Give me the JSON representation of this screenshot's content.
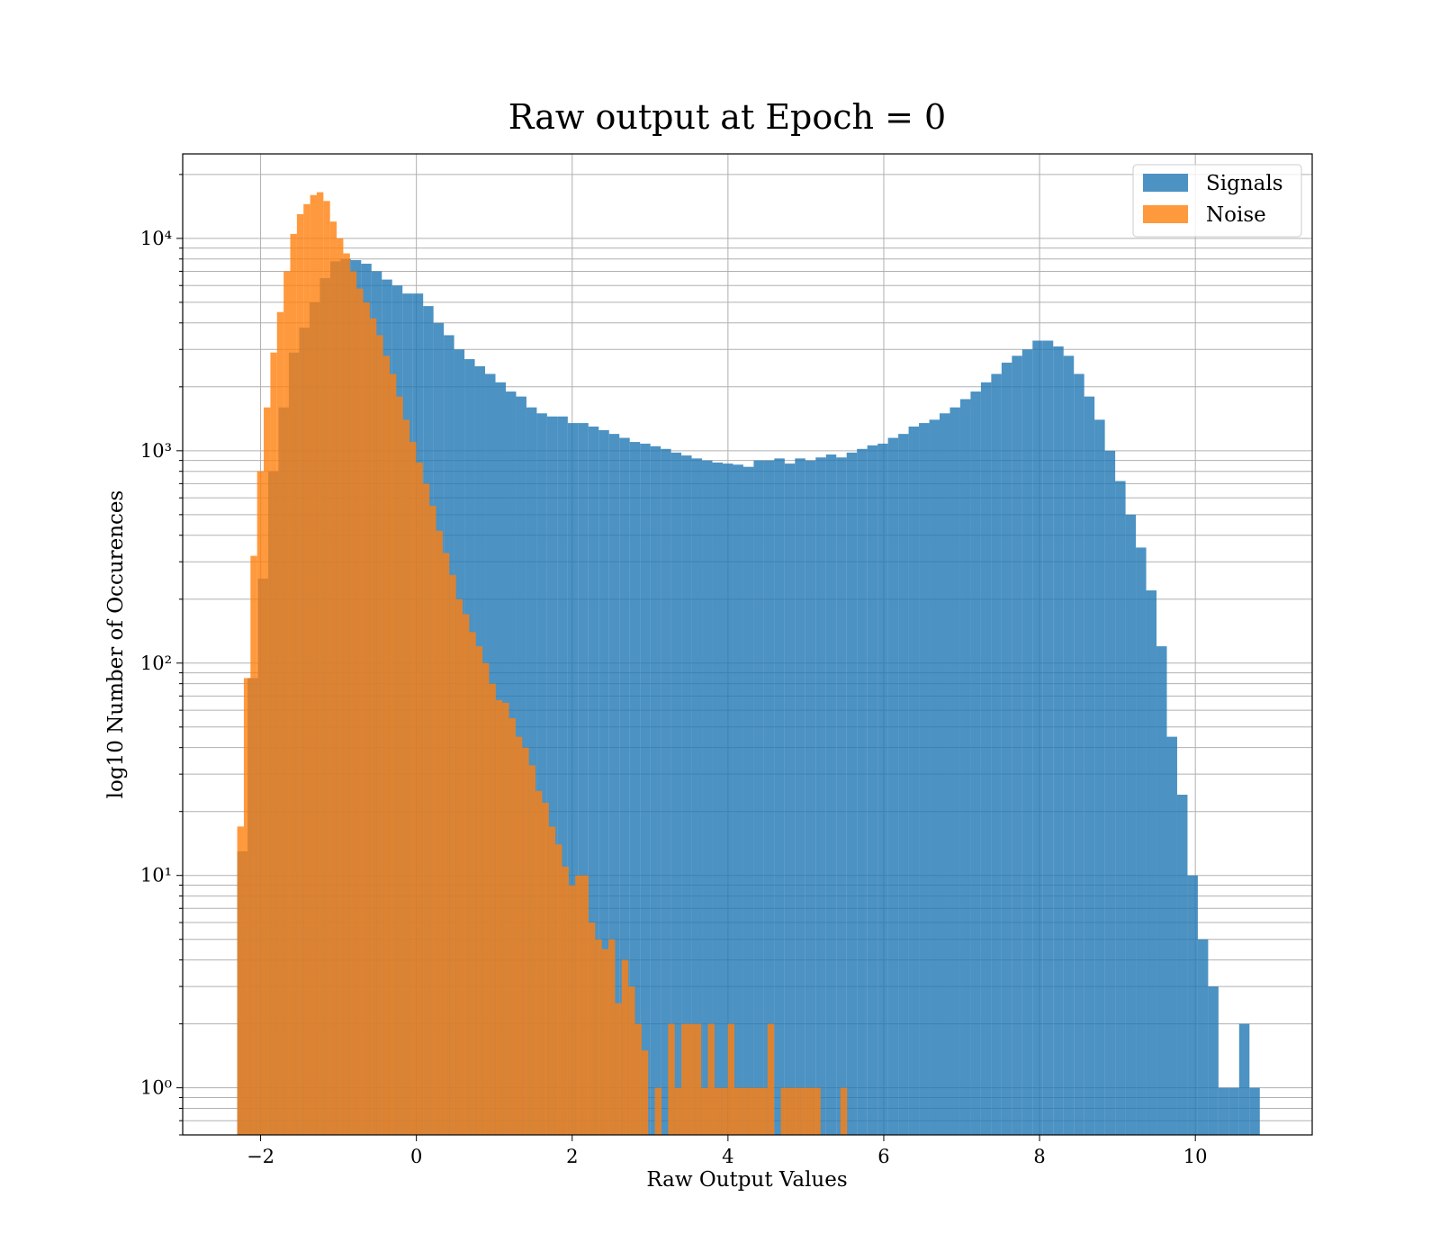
{
  "chart_data": {
    "type": "bar",
    "title": "Raw output at Epoch = 0",
    "xlabel": "Raw Output Values",
    "ylabel": "log10 Number of Occurences",
    "yscale": "log",
    "xlim": [
      -3,
      11.5
    ],
    "ylim": [
      0.6,
      25000
    ],
    "grid": true,
    "x_ticks": [
      -2,
      0,
      2,
      4,
      6,
      8,
      10
    ],
    "x_tick_labels": [
      "−2",
      "0",
      "2",
      "4",
      "6",
      "8",
      "10"
    ],
    "y_ticks": [
      1,
      10,
      100,
      1000,
      10000
    ],
    "y_tick_labels": [
      "10⁰",
      "10¹",
      "10²",
      "10³",
      "10⁴"
    ],
    "legend": {
      "placement": "top-right",
      "entries": [
        "Signals",
        "Noise"
      ]
    },
    "series": [
      {
        "name": "Signals",
        "color": "#1f77b4",
        "opacity": 0.8,
        "bins": {
          "start": -2.3,
          "width": 0.1326
        },
        "values": [
          13,
          85,
          250,
          800,
          1600,
          2900,
          3800,
          5000,
          6500,
          7800,
          8000,
          7900,
          7600,
          7000,
          6400,
          6000,
          5500,
          5500,
          4800,
          4000,
          3500,
          3000,
          2700,
          2500,
          2300,
          2100,
          1900,
          1800,
          1600,
          1500,
          1450,
          1450,
          1350,
          1350,
          1300,
          1250,
          1200,
          1150,
          1100,
          1080,
          1050,
          1020,
          980,
          950,
          920,
          900,
          880,
          870,
          860,
          840,
          900,
          900,
          920,
          870,
          920,
          900,
          930,
          960,
          930,
          980,
          1020,
          1060,
          1080,
          1150,
          1200,
          1300,
          1350,
          1400,
          1500,
          1600,
          1750,
          1900,
          2100,
          2300,
          2600,
          2800,
          3000,
          3300,
          3300,
          3100,
          2800,
          2300,
          1800,
          1400,
          1000,
          720,
          500,
          350,
          220,
          120,
          45,
          24,
          10,
          5,
          3,
          1,
          1,
          2,
          1
        ]
      },
      {
        "name": "Noise",
        "color": "#ff7f0e",
        "opacity": 0.8,
        "bins": {
          "start": -2.3,
          "width": 0.0851
        },
        "values": [
          17,
          85,
          320,
          800,
          1600,
          2900,
          4500,
          7000,
          10500,
          13000,
          14500,
          16000,
          16500,
          15000,
          12000,
          10000,
          8500,
          7000,
          5800,
          5000,
          4200,
          3500,
          2800,
          2300,
          1800,
          1400,
          1100,
          880,
          700,
          550,
          420,
          330,
          260,
          200,
          170,
          140,
          120,
          100,
          80,
          67,
          65,
          55,
          45,
          40,
          33,
          25,
          22,
          17,
          14,
          11,
          9,
          10,
          10,
          6,
          5,
          4.5,
          5,
          2.5,
          4,
          3,
          2,
          1.5,
          0,
          1,
          0,
          2,
          1,
          2,
          2,
          2,
          1,
          2,
          1,
          1,
          2,
          1,
          1,
          1,
          1,
          1,
          2,
          0,
          1,
          1,
          1,
          1,
          1,
          1,
          0,
          0,
          0,
          1,
          0,
          0,
          0,
          0,
          0,
          0,
          0,
          0,
          0,
          0,
          0
        ]
      }
    ]
  }
}
